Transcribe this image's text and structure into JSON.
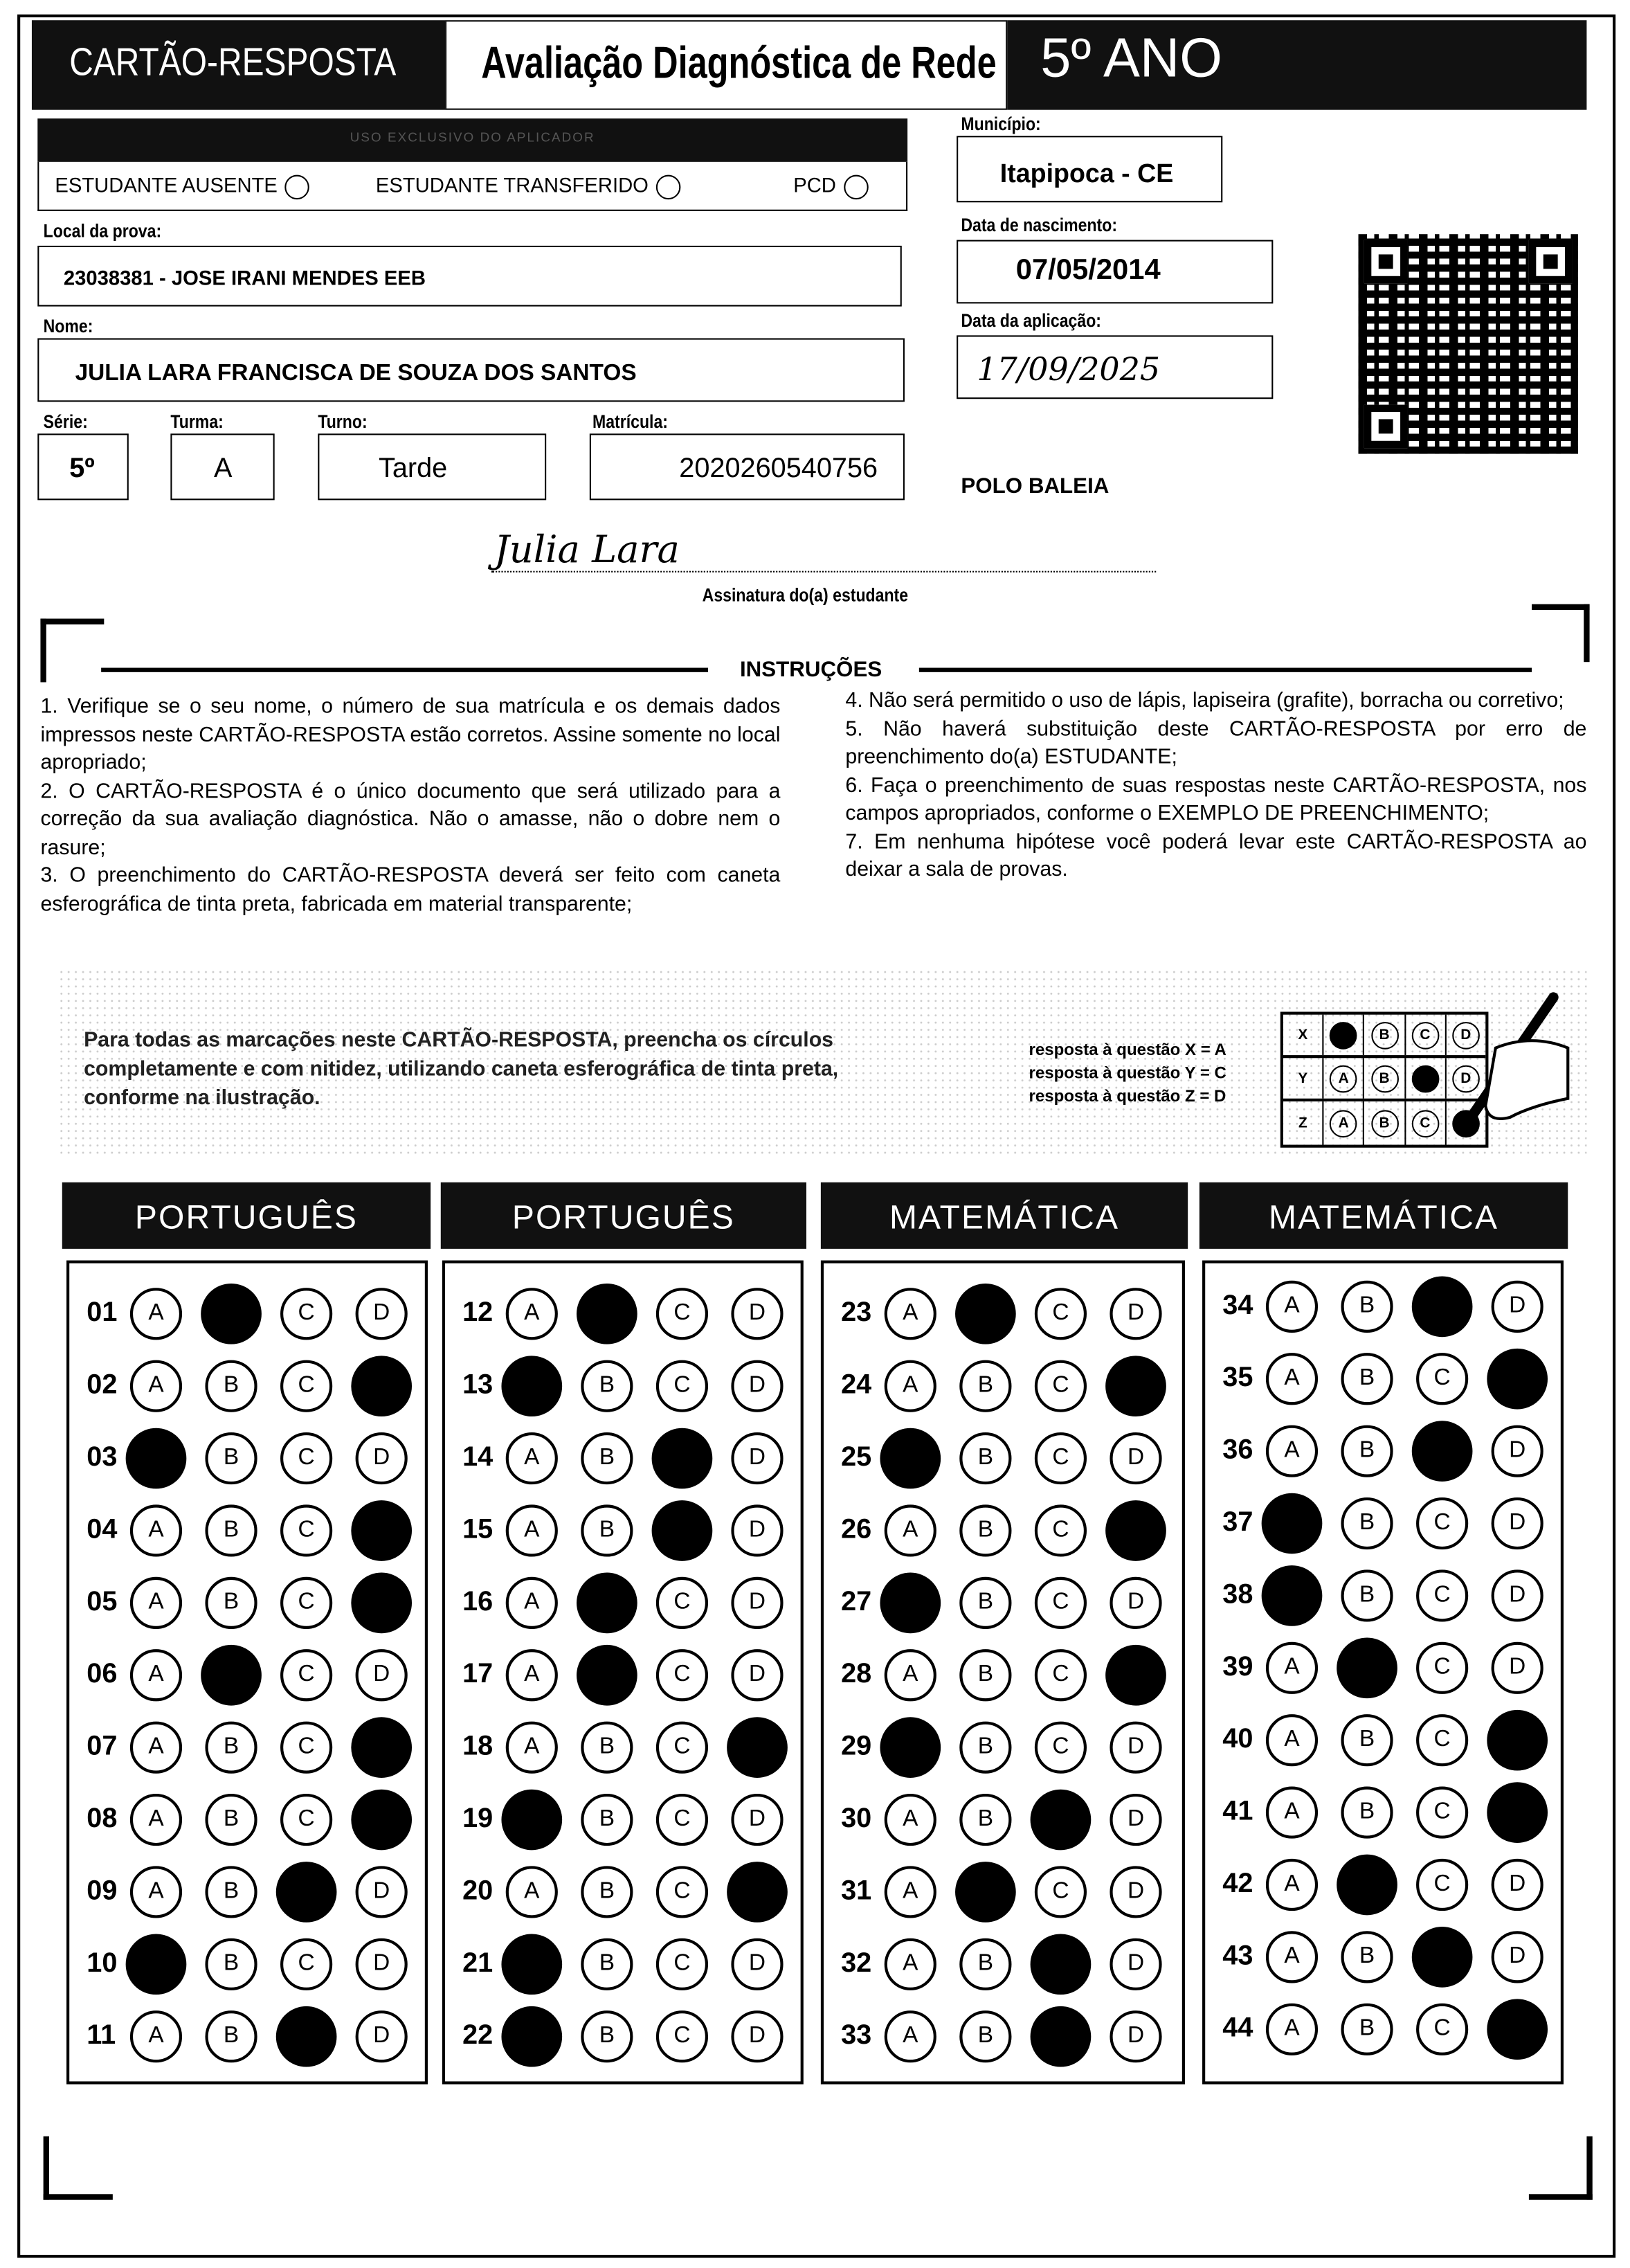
{
  "header": {
    "title": "CARTÃO-RESPOSTA",
    "subtitle": "Avaliação Diagnóstica de Rede",
    "grade": "5º ANO"
  },
  "applicator": {
    "title": "USO EXCLUSIVO DO APLICADOR",
    "options": [
      "ESTUDANTE AUSENTE",
      "ESTUDANTE TRANSFERIDO",
      "PCD"
    ]
  },
  "fields": {
    "municipio_label": "Município:",
    "municipio": "Itapipoca - CE",
    "local_label": "Local da prova:",
    "local": "23038381 - JOSE IRANI MENDES EEB",
    "nascimento_label": "Data de nascimento:",
    "nascimento": "07/05/2014",
    "nome_label": "Nome:",
    "nome": "JULIA LARA FRANCISCA DE SOUZA DOS SANTOS",
    "aplicacao_label": "Data da aplicação:",
    "aplicacao": "17/09/2025",
    "serie_label": "Série:",
    "serie": "5º",
    "turma_label": "Turma:",
    "turma": "A",
    "turno_label": "Turno:",
    "turno": "Tarde",
    "matricula_label": "Matrícula:",
    "matricula": "2020260540756",
    "polo": "POLO BALEIA"
  },
  "signature": {
    "value": "Julia Lara",
    "label": "Assinatura do(a) estudante"
  },
  "instructions": {
    "title": "INSTRUÇÕES",
    "left": [
      "1. Verifique se o seu nome, o número de sua matrícula e os demais dados impressos neste CARTÃO-RESPOSTA estão corretos. Assine somente no local apropriado;",
      "2. O CARTÃO-RESPOSTA é o único documento que será utilizado para a correção da sua avaliação diagnóstica. Não o amasse, não o dobre nem o rasure;",
      "3. O preenchimento do CARTÃO-RESPOSTA deverá ser feito com caneta esferográfica de tinta preta, fabricada em material transparente;"
    ],
    "right": [
      "4. Não será permitido o uso de lápis, lapiseira (grafite), borracha ou corretivo;",
      "5. Não haverá substituição deste CARTÃO-RESPOSTA por erro de preenchimento do(a) ESTUDANTE;",
      "6. Faça o preenchimento de suas respostas neste CARTÃO-RESPOSTA, nos campos apropriados, conforme o EXEMPLO DE PREENCHIMENTO;",
      "7. Em nenhuma hipótese você poderá levar este CARTÃO-RESPOSTA ao deixar a sala de provas."
    ]
  },
  "example": {
    "text": "Para todas as marcações neste CARTÃO-RESPOSTA, preencha os círculos completamente e com nitidez, utilizando caneta esferográfica de tinta preta, conforme na ilustração.",
    "answers": [
      "resposta à questão X = A",
      "resposta à questão Y = C",
      "resposta à questão Z = D"
    ],
    "rows": [
      {
        "q": "X",
        "marked": "A"
      },
      {
        "q": "Y",
        "marked": "C"
      },
      {
        "q": "Z",
        "marked": "D"
      }
    ]
  },
  "options": [
    "A",
    "B",
    "C",
    "D"
  ],
  "sections": [
    {
      "title": "PORTUGUÊS",
      "questions": [
        {
          "n": "01",
          "m": "B"
        },
        {
          "n": "02",
          "m": "D"
        },
        {
          "n": "03",
          "m": "A"
        },
        {
          "n": "04",
          "m": "D"
        },
        {
          "n": "05",
          "m": "D"
        },
        {
          "n": "06",
          "m": "B"
        },
        {
          "n": "07",
          "m": "D"
        },
        {
          "n": "08",
          "m": "D"
        },
        {
          "n": "09",
          "m": "C"
        },
        {
          "n": "10",
          "m": "A"
        },
        {
          "n": "11",
          "m": "C"
        }
      ]
    },
    {
      "title": "PORTUGUÊS",
      "questions": [
        {
          "n": "12",
          "m": "B"
        },
        {
          "n": "13",
          "m": "A"
        },
        {
          "n": "14",
          "m": "C"
        },
        {
          "n": "15",
          "m": "C"
        },
        {
          "n": "16",
          "m": "B"
        },
        {
          "n": "17",
          "m": "B"
        },
        {
          "n": "18",
          "m": "D"
        },
        {
          "n": "19",
          "m": "A"
        },
        {
          "n": "20",
          "m": "D"
        },
        {
          "n": "21",
          "m": "A"
        },
        {
          "n": "22",
          "m": "A"
        }
      ]
    },
    {
      "title": "MATEMÁTICA",
      "questions": [
        {
          "n": "23",
          "m": "B"
        },
        {
          "n": "24",
          "m": "D"
        },
        {
          "n": "25",
          "m": "A"
        },
        {
          "n": "26",
          "m": "D"
        },
        {
          "n": "27",
          "m": "A"
        },
        {
          "n": "28",
          "m": "D"
        },
        {
          "n": "29",
          "m": "A"
        },
        {
          "n": "30",
          "m": "C"
        },
        {
          "n": "31",
          "m": "B"
        },
        {
          "n": "32",
          "m": "C"
        },
        {
          "n": "33",
          "m": "C"
        }
      ]
    },
    {
      "title": "MATEMÁTICA",
      "questions": [
        {
          "n": "34",
          "m": "C"
        },
        {
          "n": "35",
          "m": "D"
        },
        {
          "n": "36",
          "m": "C"
        },
        {
          "n": "37",
          "m": "A"
        },
        {
          "n": "38",
          "m": "A"
        },
        {
          "n": "39",
          "m": "B"
        },
        {
          "n": "40",
          "m": "D"
        },
        {
          "n": "41",
          "m": "D"
        },
        {
          "n": "42",
          "m": "B"
        },
        {
          "n": "43",
          "m": "C"
        },
        {
          "n": "44",
          "m": "D"
        }
      ]
    }
  ]
}
